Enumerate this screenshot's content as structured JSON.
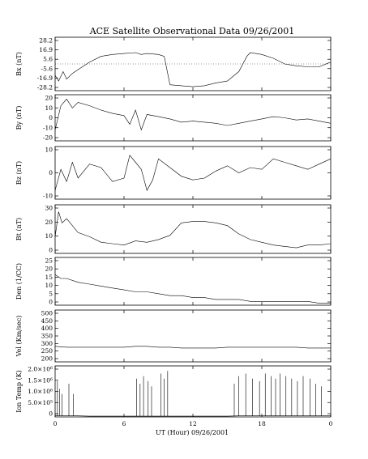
{
  "chart_data": {
    "type": "line",
    "title": "ACE Satellite Observational Data  09/26/2001",
    "xlabel": "UT (Hour)  09/26/2001",
    "x_ticks": [
      "0",
      "6",
      "12",
      "18",
      "0"
    ],
    "xlim": [
      0,
      24
    ],
    "panels": [
      {
        "ylabel": "Bx (nT)",
        "ylim": [
          -28.2,
          28.2
        ],
        "yticks": [
          "28.2",
          "16.9",
          "5.6",
          "-5.6",
          "-16.9",
          "-28.2"
        ],
        "x": [
          0,
          0.3,
          0.7,
          1,
          1.5,
          2,
          3,
          4,
          5,
          6,
          7,
          7.5,
          8,
          9,
          9.5,
          10,
          11,
          12,
          13,
          14,
          15,
          16,
          16.7,
          17,
          18,
          19,
          20,
          21,
          22,
          23,
          24
        ],
        "y": [
          -12,
          -18,
          -8,
          -16,
          -10,
          -6,
          2,
          8,
          10,
          11,
          12,
          10,
          11,
          10,
          8,
          -22,
          -23,
          -24,
          -23,
          -20,
          -18,
          -8,
          8,
          12,
          10,
          6,
          0,
          -2,
          -3,
          -3,
          2
        ]
      },
      {
        "ylabel": "By (nT)",
        "ylim": [
          -20,
          22
        ],
        "yticks": [
          "20",
          "10",
          "0",
          "-10",
          "-20"
        ],
        "x": [
          0,
          0.5,
          1,
          1.5,
          2,
          3,
          4,
          5,
          6,
          6.5,
          7,
          7.5,
          8,
          9,
          10,
          11,
          12,
          13,
          14,
          15,
          16,
          17,
          18,
          19,
          20,
          21,
          22,
          23,
          24
        ],
        "y": [
          -10,
          12,
          18,
          10,
          15,
          12,
          8,
          5,
          3,
          -5,
          8,
          -10,
          4,
          2,
          0,
          -3,
          -2,
          -3,
          -4,
          -6,
          -4,
          -2,
          0,
          2,
          1,
          -1,
          0,
          -2,
          -4
        ]
      },
      {
        "ylabel": "Bz (nT)",
        "ylim": [
          -15,
          15
        ],
        "yticks": [
          "10",
          "0",
          "-10"
        ],
        "x": [
          0,
          0.5,
          1,
          1.5,
          2,
          3,
          4,
          5,
          6,
          6.5,
          7,
          7.5,
          8,
          8.5,
          9,
          10,
          11,
          12,
          13,
          14,
          15,
          16,
          17,
          18,
          19,
          20,
          21,
          22,
          23,
          24
        ],
        "y": [
          -10,
          2,
          -5,
          6,
          -3,
          5,
          3,
          -5,
          -3,
          10,
          6,
          2,
          -10,
          -4,
          8,
          3,
          -2,
          -4,
          -3,
          1,
          4,
          0,
          3,
          2,
          8,
          6,
          4,
          2,
          5,
          8
        ]
      },
      {
        "ylabel": "Bt (nT)",
        "ylim": [
          0,
          35
        ],
        "yticks": [
          "30",
          "20",
          "10",
          "0"
        ],
        "x": [
          0,
          0.3,
          0.6,
          1,
          1.5,
          2,
          3,
          4,
          5,
          6,
          7,
          8,
          9,
          10,
          11,
          12,
          13,
          14,
          15,
          16,
          17,
          18,
          19,
          20,
          21,
          22,
          23,
          24
        ],
        "y": [
          12,
          30,
          22,
          25,
          20,
          15,
          12,
          8,
          7,
          6,
          9,
          8,
          10,
          13,
          22,
          23,
          23,
          22,
          20,
          14,
          10,
          8,
          6,
          5,
          4,
          6,
          6,
          7
        ]
      },
      {
        "ylabel": "Den (1/CC)",
        "ylim": [
          0,
          25
        ],
        "yticks": [
          "25",
          "20",
          "15",
          "10",
          "5",
          "0"
        ],
        "x": [
          0,
          0.5,
          1,
          2,
          3,
          4,
          5,
          6,
          7,
          8,
          9,
          10,
          11,
          12,
          13,
          14,
          15,
          16,
          17,
          18,
          19,
          20,
          21,
          22,
          23,
          24
        ],
        "y": [
          16,
          14,
          14,
          12,
          11,
          10,
          9,
          8,
          7,
          7,
          6,
          5,
          5,
          4,
          4,
          3,
          3,
          3,
          2,
          2,
          2,
          2,
          2,
          2,
          1,
          1
        ]
      },
      {
        "ylabel": "Vel (Km/sec)",
        "ylim": [
          200,
          500
        ],
        "yticks": [
          "500",
          "450",
          "400",
          "350",
          "300",
          "250",
          "200"
        ],
        "x": [
          0,
          1,
          2,
          3,
          4,
          5,
          6,
          7,
          8,
          9,
          10,
          11,
          12,
          13,
          14,
          15,
          16,
          17,
          18,
          19,
          20,
          21,
          22,
          23,
          24
        ],
        "y": [
          290,
          285,
          285,
          285,
          285,
          285,
          285,
          290,
          290,
          285,
          285,
          280,
          280,
          280,
          280,
          285,
          285,
          285,
          285,
          285,
          285,
          285,
          280,
          280,
          280
        ]
      },
      {
        "ylabel": "Ion Temp (K)",
        "ylim": [
          0,
          2000000
        ],
        "yticks": [
          "2.0×10⁶",
          "1.5×10⁶",
          "1.0×10⁶",
          "5.0×10⁵",
          "0"
        ],
        "x": [
          0,
          1,
          2,
          3,
          4,
          5,
          6,
          7,
          8,
          9,
          10,
          11,
          12,
          13,
          14,
          15,
          16,
          17,
          18,
          19,
          20,
          21,
          22,
          23,
          24
        ],
        "y": [
          50000,
          50000,
          40000,
          30000,
          30000,
          30000,
          30000,
          30000,
          30000,
          30000,
          30000,
          30000,
          30000,
          30000,
          30000,
          30000,
          40000,
          40000,
          40000,
          40000,
          40000,
          40000,
          40000,
          40000,
          40000
        ],
        "spikes_x": [
          0.2,
          0.4,
          0.6,
          1.2,
          1.6,
          7.1,
          7.4,
          7.7,
          8.1,
          8.4,
          9.2,
          9.5,
          9.8,
          15.6,
          16.0,
          16.6,
          17.2,
          17.8,
          18.3,
          18.8,
          19.2,
          19.6,
          20.1,
          20.6,
          21.1,
          21.6,
          22.2,
          22.7,
          23.2
        ],
        "spikes_y": [
          1400000,
          1100000,
          900000,
          1300000,
          900000,
          1500000,
          1300000,
          1600000,
          1400000,
          1200000,
          1700000,
          1500000,
          1800000,
          1300000,
          1600000,
          1700000,
          1500000,
          1400000,
          1700000,
          1600000,
          1500000,
          1700000,
          1600000,
          1500000,
          1400000,
          1600000,
          1500000,
          1300000,
          1200000
        ]
      }
    ]
  }
}
